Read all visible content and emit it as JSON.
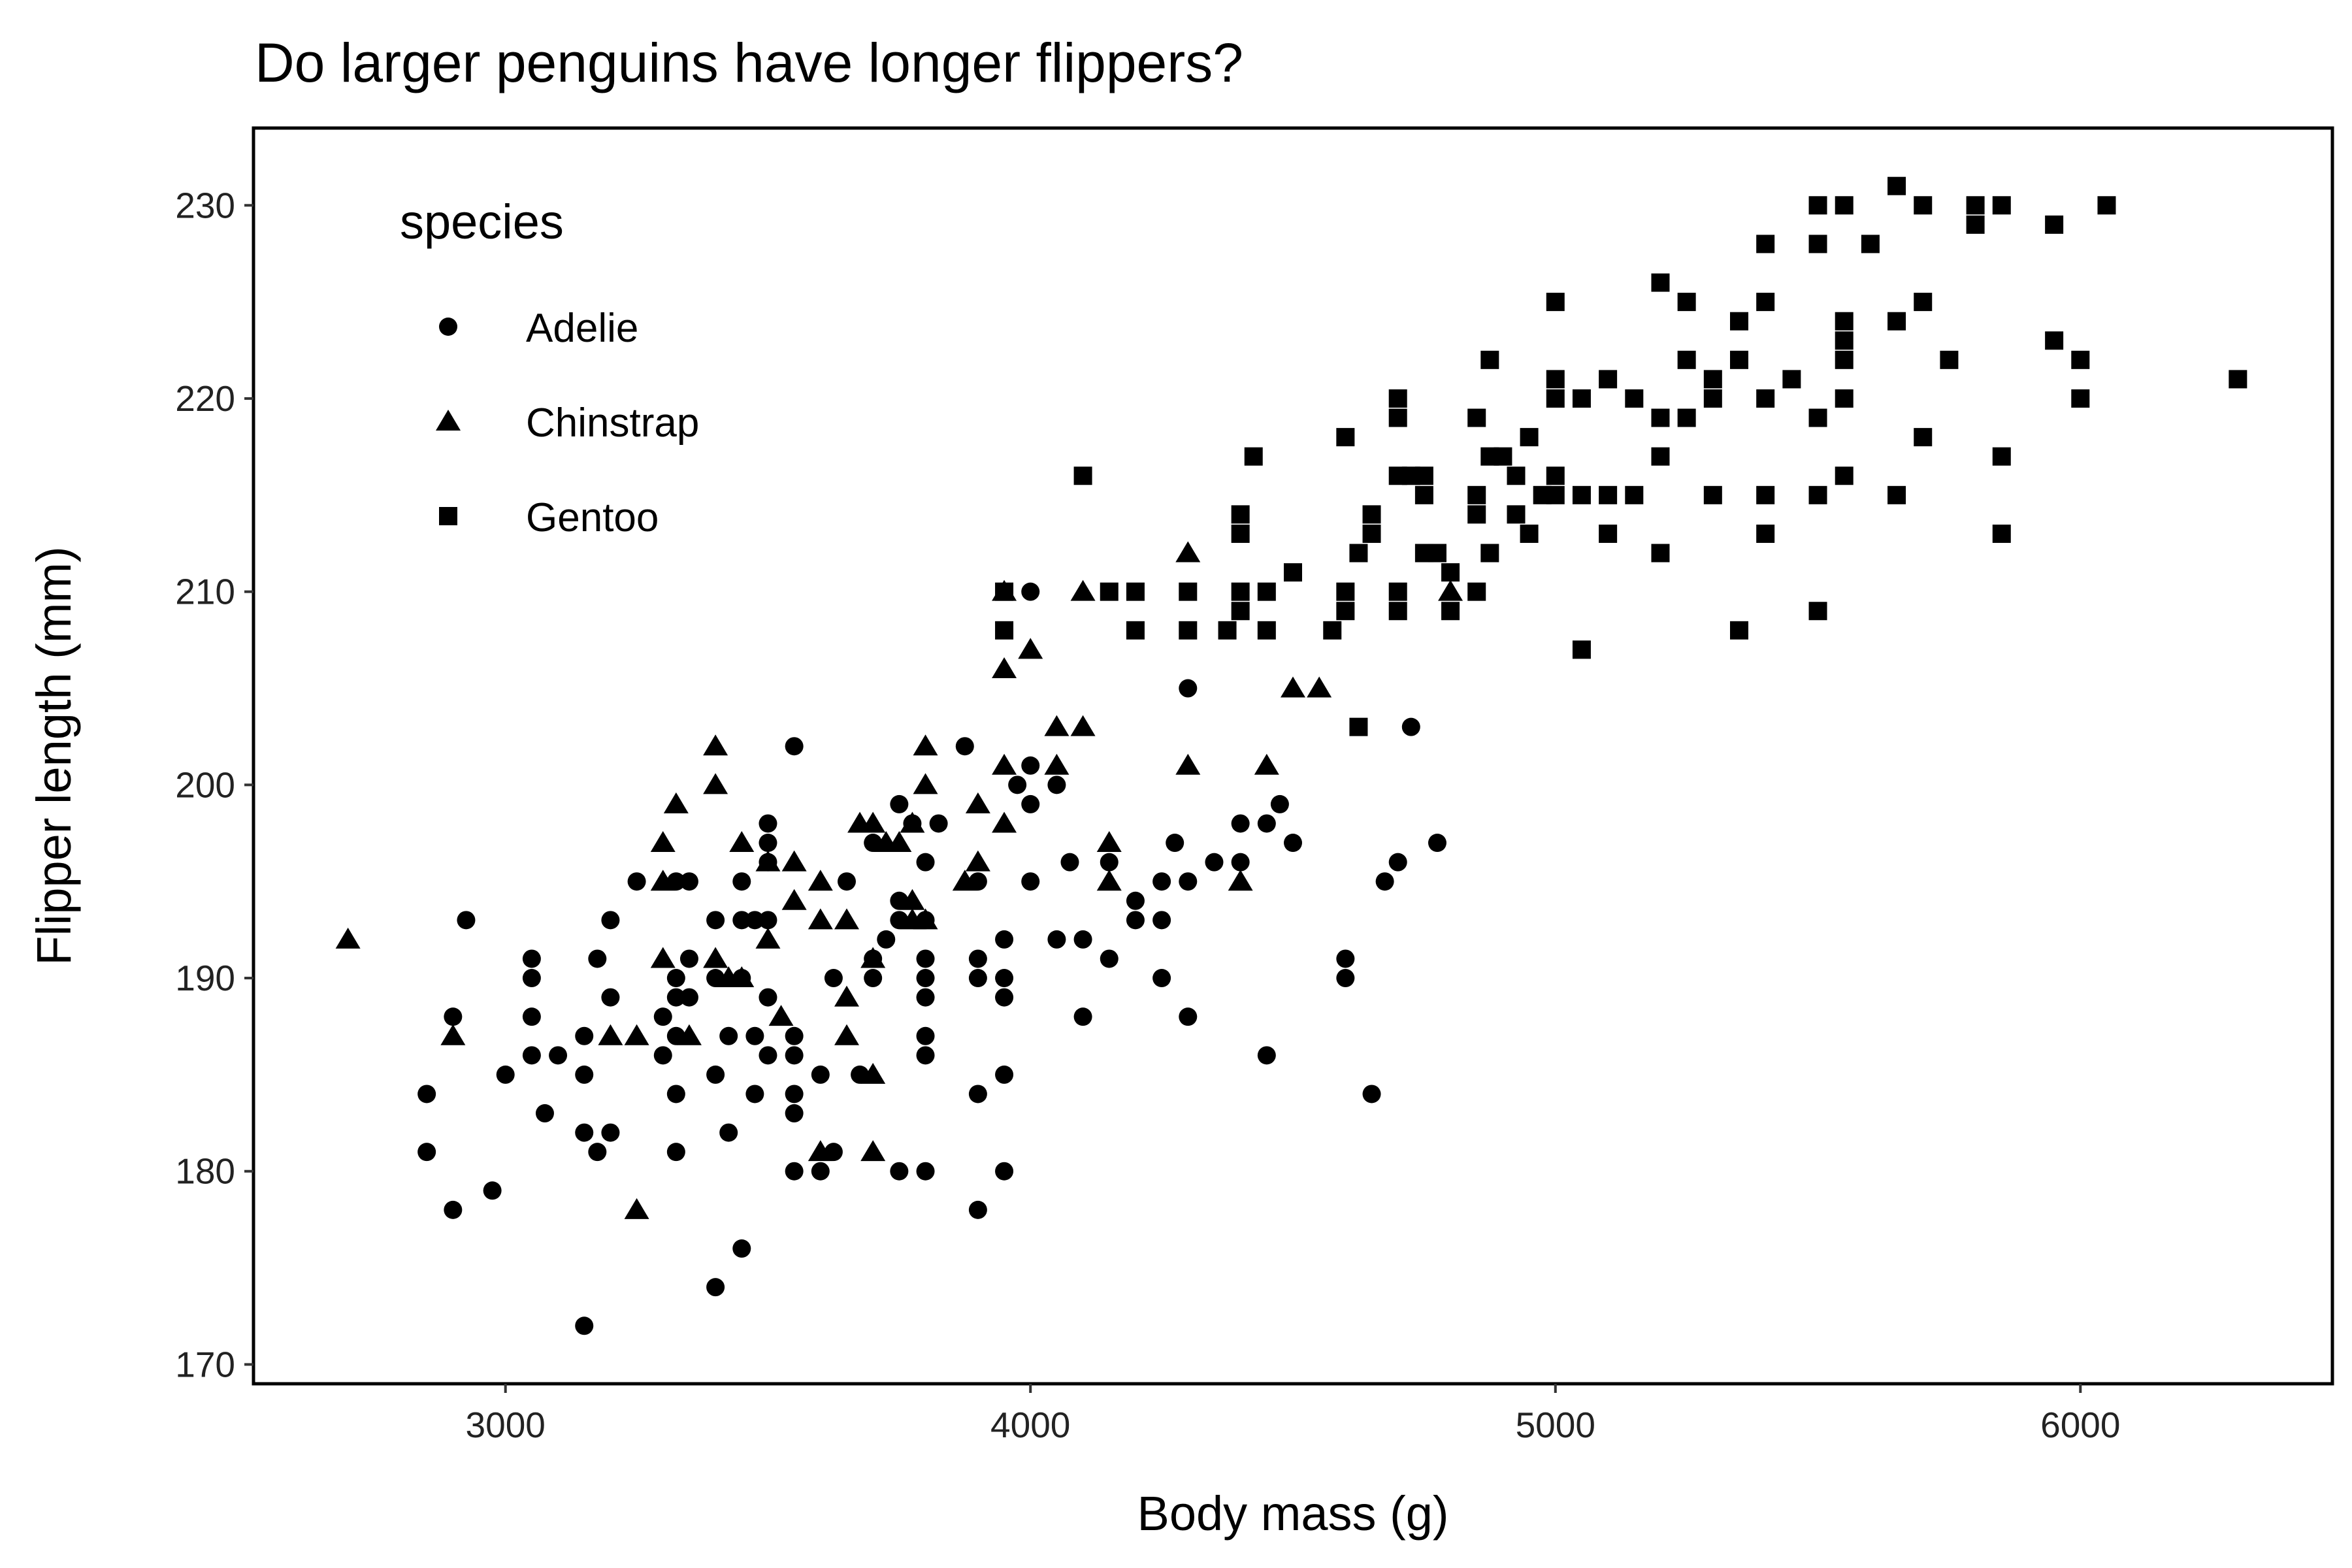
{
  "chart_data": {
    "type": "scatter",
    "title": "Do larger penguins have longer flippers?",
    "xlabel": "Body mass (g)",
    "ylabel": "Flipper length (mm)",
    "xlim": [
      2520,
      6480
    ],
    "ylim": [
      169,
      234
    ],
    "xticks": [
      3000,
      4000,
      5000,
      6000
    ],
    "yticks": [
      170,
      180,
      190,
      200,
      210,
      220,
      230
    ],
    "grid": false,
    "color": "#000000",
    "legend": {
      "title": "species",
      "position": "top-left",
      "entries": [
        {
          "label": "Adelie",
          "shape": "circle"
        },
        {
          "label": "Chinstrap",
          "shape": "triangle"
        },
        {
          "label": "Gentoo",
          "shape": "square"
        }
      ]
    },
    "series": [
      {
        "name": "Adelie",
        "shape": "circle",
        "points": [
          [
            3150,
            172
          ],
          [
            3400,
            174
          ],
          [
            3450,
            176
          ],
          [
            2900,
            178
          ],
          [
            3900,
            178
          ],
          [
            2975,
            179
          ],
          [
            3550,
            180
          ],
          [
            3600,
            180
          ],
          [
            3750,
            180
          ],
          [
            3800,
            180
          ],
          [
            3950,
            180
          ],
          [
            2850,
            181
          ],
          [
            3175,
            181
          ],
          [
            3325,
            181
          ],
          [
            3625,
            181
          ],
          [
            3150,
            182
          ],
          [
            3200,
            182
          ],
          [
            3425,
            182
          ],
          [
            3075,
            183
          ],
          [
            3550,
            183
          ],
          [
            2850,
            184
          ],
          [
            3325,
            184
          ],
          [
            3475,
            184
          ],
          [
            3550,
            184
          ],
          [
            3900,
            184
          ],
          [
            4650,
            184
          ],
          [
            3000,
            185
          ],
          [
            3150,
            185
          ],
          [
            3400,
            185
          ],
          [
            3600,
            185
          ],
          [
            3675,
            185
          ],
          [
            3950,
            185
          ],
          [
            3050,
            186
          ],
          [
            3100,
            186
          ],
          [
            3300,
            186
          ],
          [
            3500,
            186
          ],
          [
            3550,
            186
          ],
          [
            3800,
            186
          ],
          [
            4450,
            186
          ],
          [
            3150,
            187
          ],
          [
            3325,
            187
          ],
          [
            3425,
            187
          ],
          [
            3475,
            187
          ],
          [
            3550,
            187
          ],
          [
            3800,
            187
          ],
          [
            2900,
            188
          ],
          [
            3050,
            188
          ],
          [
            3300,
            188
          ],
          [
            4100,
            188
          ],
          [
            4300,
            188
          ],
          [
            3200,
            189
          ],
          [
            3325,
            189
          ],
          [
            3350,
            189
          ],
          [
            3500,
            189
          ],
          [
            3800,
            189
          ],
          [
            3950,
            189
          ],
          [
            3050,
            190
          ],
          [
            3325,
            190
          ],
          [
            3400,
            190
          ],
          [
            3450,
            190
          ],
          [
            3625,
            190
          ],
          [
            3700,
            190
          ],
          [
            3800,
            190
          ],
          [
            3900,
            190
          ],
          [
            3950,
            190
          ],
          [
            4250,
            190
          ],
          [
            4600,
            190
          ],
          [
            3050,
            191
          ],
          [
            3175,
            191
          ],
          [
            3350,
            191
          ],
          [
            3700,
            191
          ],
          [
            3800,
            191
          ],
          [
            3900,
            191
          ],
          [
            4150,
            191
          ],
          [
            4600,
            191
          ],
          [
            3725,
            192
          ],
          [
            3950,
            192
          ],
          [
            4050,
            192
          ],
          [
            4100,
            192
          ],
          [
            2925,
            193
          ],
          [
            3200,
            193
          ],
          [
            3400,
            193
          ],
          [
            3450,
            193
          ],
          [
            3475,
            193
          ],
          [
            3500,
            193
          ],
          [
            3750,
            193
          ],
          [
            3800,
            193
          ],
          [
            4250,
            193
          ],
          [
            4200,
            194
          ],
          [
            3750,
            194
          ],
          [
            4200,
            193
          ],
          [
            3250,
            195
          ],
          [
            3325,
            195
          ],
          [
            3350,
            195
          ],
          [
            3450,
            195
          ],
          [
            3650,
            195
          ],
          [
            3900,
            195
          ],
          [
            4000,
            195
          ],
          [
            4250,
            195
          ],
          [
            4300,
            195
          ],
          [
            4675,
            195
          ],
          [
            3500,
            196
          ],
          [
            3800,
            196
          ],
          [
            4075,
            196
          ],
          [
            4150,
            196
          ],
          [
            4350,
            196
          ],
          [
            4400,
            196
          ],
          [
            4700,
            196
          ],
          [
            3500,
            197
          ],
          [
            3700,
            197
          ],
          [
            4275,
            197
          ],
          [
            4500,
            197
          ],
          [
            4775,
            197
          ],
          [
            3500,
            198
          ],
          [
            3775,
            198
          ],
          [
            3825,
            198
          ],
          [
            4400,
            198
          ],
          [
            4450,
            198
          ],
          [
            3750,
            199
          ],
          [
            4000,
            199
          ],
          [
            4475,
            199
          ],
          [
            3975,
            200
          ],
          [
            4050,
            200
          ],
          [
            4000,
            201
          ],
          [
            3550,
            202
          ],
          [
            3875,
            202
          ],
          [
            4725,
            203
          ],
          [
            4300,
            205
          ],
          [
            4000,
            210
          ]
        ]
      },
      {
        "name": "Chinstrap",
        "shape": "triangle",
        "points": [
          [
            2700,
            192
          ],
          [
            3250,
            178
          ],
          [
            2900,
            187
          ],
          [
            3200,
            187
          ],
          [
            3250,
            187
          ],
          [
            3300,
            191
          ],
          [
            3350,
            187
          ],
          [
            3300,
            195
          ],
          [
            3300,
            197
          ],
          [
            3325,
            199
          ],
          [
            3400,
            202
          ],
          [
            3400,
            200
          ],
          [
            3400,
            191
          ],
          [
            3425,
            190
          ],
          [
            3450,
            190
          ],
          [
            3450,
            197
          ],
          [
            3500,
            196
          ],
          [
            3500,
            192
          ],
          [
            3525,
            188
          ],
          [
            3550,
            196
          ],
          [
            3550,
            194
          ],
          [
            3600,
            195
          ],
          [
            3600,
            193
          ],
          [
            3600,
            181
          ],
          [
            3650,
            193
          ],
          [
            3650,
            189
          ],
          [
            3650,
            187
          ],
          [
            3675,
            198
          ],
          [
            3700,
            198
          ],
          [
            3700,
            191
          ],
          [
            3700,
            185
          ],
          [
            3700,
            181
          ],
          [
            3725,
            197
          ],
          [
            3750,
            197
          ],
          [
            3775,
            194
          ],
          [
            3775,
            198
          ],
          [
            3800,
            200
          ],
          [
            3800,
            202
          ],
          [
            3800,
            193
          ],
          [
            3775,
            193
          ],
          [
            3875,
            195
          ],
          [
            3900,
            196
          ],
          [
            3900,
            199
          ],
          [
            3950,
            201
          ],
          [
            3950,
            198
          ],
          [
            3950,
            206
          ],
          [
            3950,
            210
          ],
          [
            4000,
            207
          ],
          [
            4050,
            203
          ],
          [
            4050,
            201
          ],
          [
            4100,
            210
          ],
          [
            4100,
            203
          ],
          [
            4150,
            197
          ],
          [
            4150,
            195
          ],
          [
            4300,
            212
          ],
          [
            4300,
            201
          ],
          [
            4400,
            195
          ],
          [
            4450,
            201
          ],
          [
            4500,
            205
          ],
          [
            4550,
            205
          ],
          [
            4800,
            210
          ]
        ]
      },
      {
        "name": "Gentoo",
        "shape": "square",
        "points": [
          [
            3950,
            208
          ],
          [
            3950,
            210
          ],
          [
            4100,
            216
          ],
          [
            4150,
            210
          ],
          [
            4200,
            210
          ],
          [
            4200,
            208
          ],
          [
            4300,
            210
          ],
          [
            4300,
            208
          ],
          [
            4375,
            208
          ],
          [
            4400,
            210
          ],
          [
            4400,
            209
          ],
          [
            4400,
            213
          ],
          [
            4400,
            214
          ],
          [
            4425,
            217
          ],
          [
            4450,
            210
          ],
          [
            4450,
            208
          ],
          [
            4500,
            211
          ],
          [
            4575,
            208
          ],
          [
            4600,
            210
          ],
          [
            4600,
            209
          ],
          [
            4600,
            218
          ],
          [
            4625,
            212
          ],
          [
            4625,
            203
          ],
          [
            4650,
            214
          ],
          [
            4650,
            213
          ],
          [
            4700,
            220
          ],
          [
            4700,
            219
          ],
          [
            4700,
            216
          ],
          [
            4700,
            210
          ],
          [
            4700,
            209
          ],
          [
            4725,
            216
          ],
          [
            4750,
            216
          ],
          [
            4750,
            215
          ],
          [
            4750,
            212
          ],
          [
            4775,
            212
          ],
          [
            4800,
            211
          ],
          [
            4800,
            209
          ],
          [
            4850,
            219
          ],
          [
            4850,
            215
          ],
          [
            4850,
            214
          ],
          [
            4850,
            210
          ],
          [
            4875,
            222
          ],
          [
            4875,
            217
          ],
          [
            4875,
            212
          ],
          [
            4900,
            217
          ],
          [
            4925,
            216
          ],
          [
            4925,
            214
          ],
          [
            4950,
            218
          ],
          [
            4950,
            213
          ],
          [
            4975,
            215
          ],
          [
            5000,
            225
          ],
          [
            5000,
            221
          ],
          [
            5000,
            220
          ],
          [
            5000,
            216
          ],
          [
            5000,
            215
          ],
          [
            5050,
            220
          ],
          [
            5050,
            215
          ],
          [
            5050,
            207
          ],
          [
            5100,
            221
          ],
          [
            5100,
            215
          ],
          [
            5100,
            213
          ],
          [
            5150,
            220
          ],
          [
            5150,
            215
          ],
          [
            5200,
            226
          ],
          [
            5200,
            219
          ],
          [
            5200,
            217
          ],
          [
            5200,
            212
          ],
          [
            5250,
            225
          ],
          [
            5250,
            222
          ],
          [
            5250,
            219
          ],
          [
            5300,
            221
          ],
          [
            5300,
            220
          ],
          [
            5300,
            215
          ],
          [
            5350,
            224
          ],
          [
            5350,
            222
          ],
          [
            5350,
            208
          ],
          [
            5400,
            228
          ],
          [
            5400,
            225
          ],
          [
            5400,
            220
          ],
          [
            5400,
            215
          ],
          [
            5400,
            213
          ],
          [
            5450,
            221
          ],
          [
            5500,
            230
          ],
          [
            5500,
            228
          ],
          [
            5500,
            219
          ],
          [
            5500,
            215
          ],
          [
            5500,
            209
          ],
          [
            5550,
            230
          ],
          [
            5550,
            224
          ],
          [
            5550,
            223
          ],
          [
            5550,
            222
          ],
          [
            5550,
            220
          ],
          [
            5550,
            216
          ],
          [
            5600,
            228
          ],
          [
            5650,
            231
          ],
          [
            5650,
            224
          ],
          [
            5650,
            215
          ],
          [
            5700,
            230
          ],
          [
            5700,
            225
          ],
          [
            5700,
            218
          ],
          [
            5750,
            222
          ],
          [
            5800,
            230
          ],
          [
            5800,
            229
          ],
          [
            5850,
            230
          ],
          [
            5850,
            217
          ],
          [
            5850,
            213
          ],
          [
            5950,
            229
          ],
          [
            5950,
            223
          ],
          [
            6000,
            222
          ],
          [
            6000,
            220
          ],
          [
            6050,
            230
          ],
          [
            6300,
            221
          ]
        ]
      }
    ]
  }
}
